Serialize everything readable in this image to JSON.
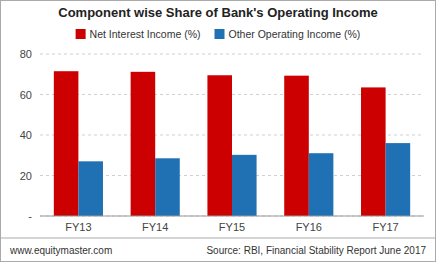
{
  "chart_data": {
    "type": "bar",
    "title": "Component wise Share of Bank's Operating Income",
    "categories": [
      "FY13",
      "FY14",
      "FY15",
      "FY16",
      "FY17"
    ],
    "series": [
      {
        "name": "Net Interest Income (%)",
        "color": "#cc0000",
        "values": [
          71.5,
          71.2,
          69.5,
          69.3,
          63.5
        ]
      },
      {
        "name": "Other Operating Income (%)",
        "color": "#2071b3",
        "values": [
          27.0,
          28.5,
          30.2,
          31.0,
          36.0
        ]
      }
    ],
    "ylim": [
      0,
      80
    ],
    "yticks": [
      {
        "value": 0,
        "label": "-"
      },
      20,
      40,
      60,
      80
    ],
    "grid": true,
    "legend": "top",
    "annotations": [
      "www.equitymaster.com",
      "Source: RBI, Financial Stability Report June 2017"
    ]
  }
}
